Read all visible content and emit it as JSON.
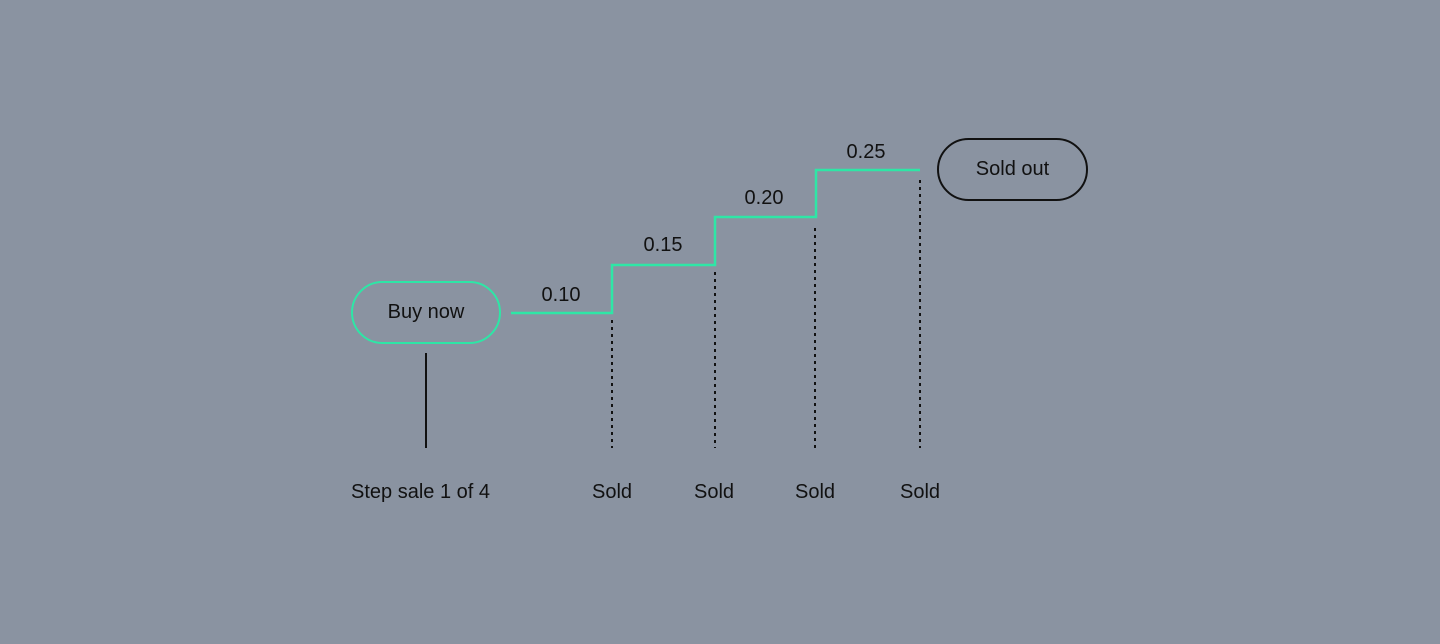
{
  "buy_button": {
    "label": "Buy now"
  },
  "sold_out_button": {
    "label": "Sold out"
  },
  "caption": "Step sale 1 of 4",
  "prices": [
    "0.10",
    "0.15",
    "0.20",
    "0.25"
  ],
  "sold_labels": [
    "Sold",
    "Sold",
    "Sold",
    "Sold"
  ],
  "colors": {
    "background": "#8a93a1",
    "accent": "#2ee6a6",
    "ink": "#111111"
  }
}
